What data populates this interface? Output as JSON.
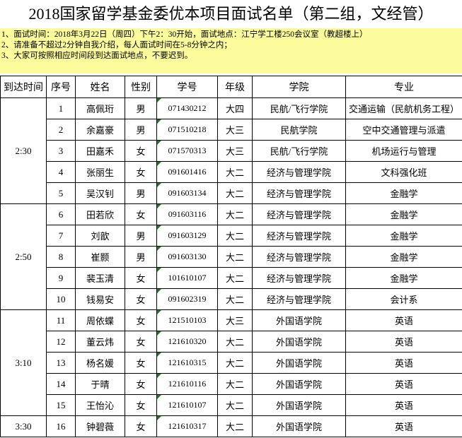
{
  "title": "2018国家留学基金委优本项目面试名单（第二组，文经管）",
  "notes": [
    "1、面试时间：2018年3月22日（周四）下午2：30开始，面试地点：江宁学工楼250会议室（教超楼上）",
    "2、请准备不超过2分钟自我介绍，每人面试时间在5-8分钟之内；",
    "3、大家可按照相应时间段到达面试地点，不要迟到。"
  ],
  "headers": [
    "到达时间",
    "序号",
    "姓名",
    "性别",
    "学号",
    "年级",
    "学院",
    "专业"
  ],
  "groups": [
    {
      "time": "2:30",
      "rows": [
        {
          "no": "1",
          "name": "高佩珩",
          "gender": "男",
          "id": "071430212",
          "grade": "大四",
          "college": "民航/飞行学院",
          "major": "交通运输（民航机务工程）"
        },
        {
          "no": "2",
          "name": "余嘉豪",
          "gender": "男",
          "id": "071510218",
          "grade": "大三",
          "college": "民航学院",
          "major": "空中交通管理与派遣"
        },
        {
          "no": "3",
          "name": "田嘉禾",
          "gender": "女",
          "id": "071570313",
          "grade": "大三",
          "college": "民航/飞行学院",
          "major": "机场运行与管理"
        },
        {
          "no": "4",
          "name": "张丽生",
          "gender": "女",
          "id": "091601416",
          "grade": "大二",
          "college": "经济与管理学院",
          "major": "文科强化班"
        },
        {
          "no": "5",
          "name": "吴汉钊",
          "gender": "男",
          "id": "091603134",
          "grade": "大二",
          "college": "经济与管理学院",
          "major": "金融学"
        }
      ]
    },
    {
      "time": "2:50",
      "rows": [
        {
          "no": "6",
          "name": "田若欣",
          "gender": "女",
          "id": "091603116",
          "grade": "大二",
          "college": "经济与管理学院",
          "major": "金融学"
        },
        {
          "no": "7",
          "name": "刘歆",
          "gender": "男",
          "id": "091603129",
          "grade": "大二",
          "college": "经济与管理学院",
          "major": "金融学"
        },
        {
          "no": "8",
          "name": "崔颢",
          "gender": "男",
          "id": "091603130",
          "grade": "大二",
          "college": "经济与管理学院",
          "major": "金融学"
        },
        {
          "no": "9",
          "name": "裴玉清",
          "gender": "女",
          "id": "101610107",
          "grade": "大二",
          "college": "经济与管理学院",
          "major": "金融学"
        },
        {
          "no": "10",
          "name": "钱易安",
          "gender": "女",
          "id": "091602319",
          "grade": "大二",
          "college": "经济与管理学院",
          "major": "会计系"
        }
      ]
    },
    {
      "time": "3:10",
      "rows": [
        {
          "no": "11",
          "name": "周依蝶",
          "gender": "女",
          "id": "121510103",
          "grade": "大三",
          "college": "外国语学院",
          "major": "英语"
        },
        {
          "no": "12",
          "name": "董云炜",
          "gender": "女",
          "id": "121610320",
          "grade": "大二",
          "college": "外国语学院",
          "major": "英语"
        },
        {
          "no": "13",
          "name": "杨名媛",
          "gender": "女",
          "id": "121610315",
          "grade": "大二",
          "college": "外国语学院",
          "major": "英语"
        },
        {
          "no": "14",
          "name": "于晴",
          "gender": "女",
          "id": "121610116",
          "grade": "大二",
          "college": "外国语学院",
          "major": "英语"
        },
        {
          "no": "15",
          "name": "王怡沁",
          "gender": "女",
          "id": "121610107",
          "grade": "大二",
          "college": "外国语学院",
          "major": "英语"
        }
      ]
    },
    {
      "time": "3:30",
      "rows": [
        {
          "no": "16",
          "name": "钟碧薇",
          "gender": "女",
          "id": "121610317",
          "grade": "大二",
          "college": "外国语学院",
          "major": "英语"
        }
      ]
    }
  ]
}
